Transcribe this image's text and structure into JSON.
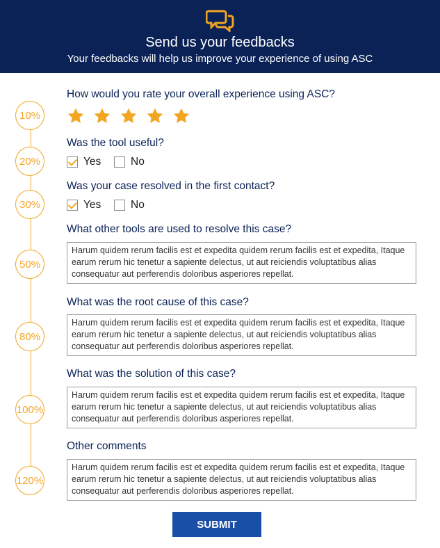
{
  "header": {
    "title": "Send us your feedbacks",
    "subtitle": "Your feedbacks will help us improve your experience of using ASC",
    "logo_icon": "chat-bubbles-icon"
  },
  "colors": {
    "header_bg": "#0b2257",
    "accent": "#f2a521",
    "submit_bg": "#1a4fa8"
  },
  "progress": [
    "10%",
    "20%",
    "30%",
    "50%",
    "80%",
    "100%",
    "120%"
  ],
  "questions": {
    "rating": {
      "label": "How would you rate your overall experience using ASC?",
      "stars_filled": 5,
      "stars_total": 5
    },
    "useful": {
      "label": "Was the tool useful?",
      "yes": "Yes",
      "no": "No",
      "selected": "Yes"
    },
    "resolved": {
      "label": "Was your case resolved in the first contact?",
      "yes": "Yes",
      "no": "No",
      "selected": "Yes"
    },
    "tools": {
      "label": "What other tools are used to resolve this case?",
      "value": "Harum quidem rerum facilis est et expedita quidem rerum facilis est et expedita, Itaque earum rerum hic tenetur a sapiente delectus, ut aut reiciendis voluptatibus alias consequatur aut perferendis doloribus asperiores repellat."
    },
    "root_cause": {
      "label": "What was the root cause of this case?",
      "value": "Harum quidem rerum facilis est et expedita quidem rerum facilis est et expedita, Itaque earum rerum hic tenetur a sapiente delectus, ut aut reiciendis voluptatibus alias consequatur aut perferendis doloribus asperiores repellat."
    },
    "solution": {
      "label": "What was the solution of this case?",
      "value": "Harum quidem rerum facilis est et expedita quidem rerum facilis est et expedita, Itaque earum rerum hic tenetur a sapiente delectus, ut aut reiciendis voluptatibus alias consequatur aut perferendis doloribus asperiores repellat."
    },
    "comments": {
      "label": "Other comments",
      "value": "Harum quidem rerum facilis est et expedita quidem rerum facilis est et expedita, Itaque earum rerum hic tenetur a sapiente delectus, ut aut reiciendis voluptatibus alias consequatur aut perferendis doloribus asperiores repellat."
    }
  },
  "submit_label": "SUBMIT"
}
